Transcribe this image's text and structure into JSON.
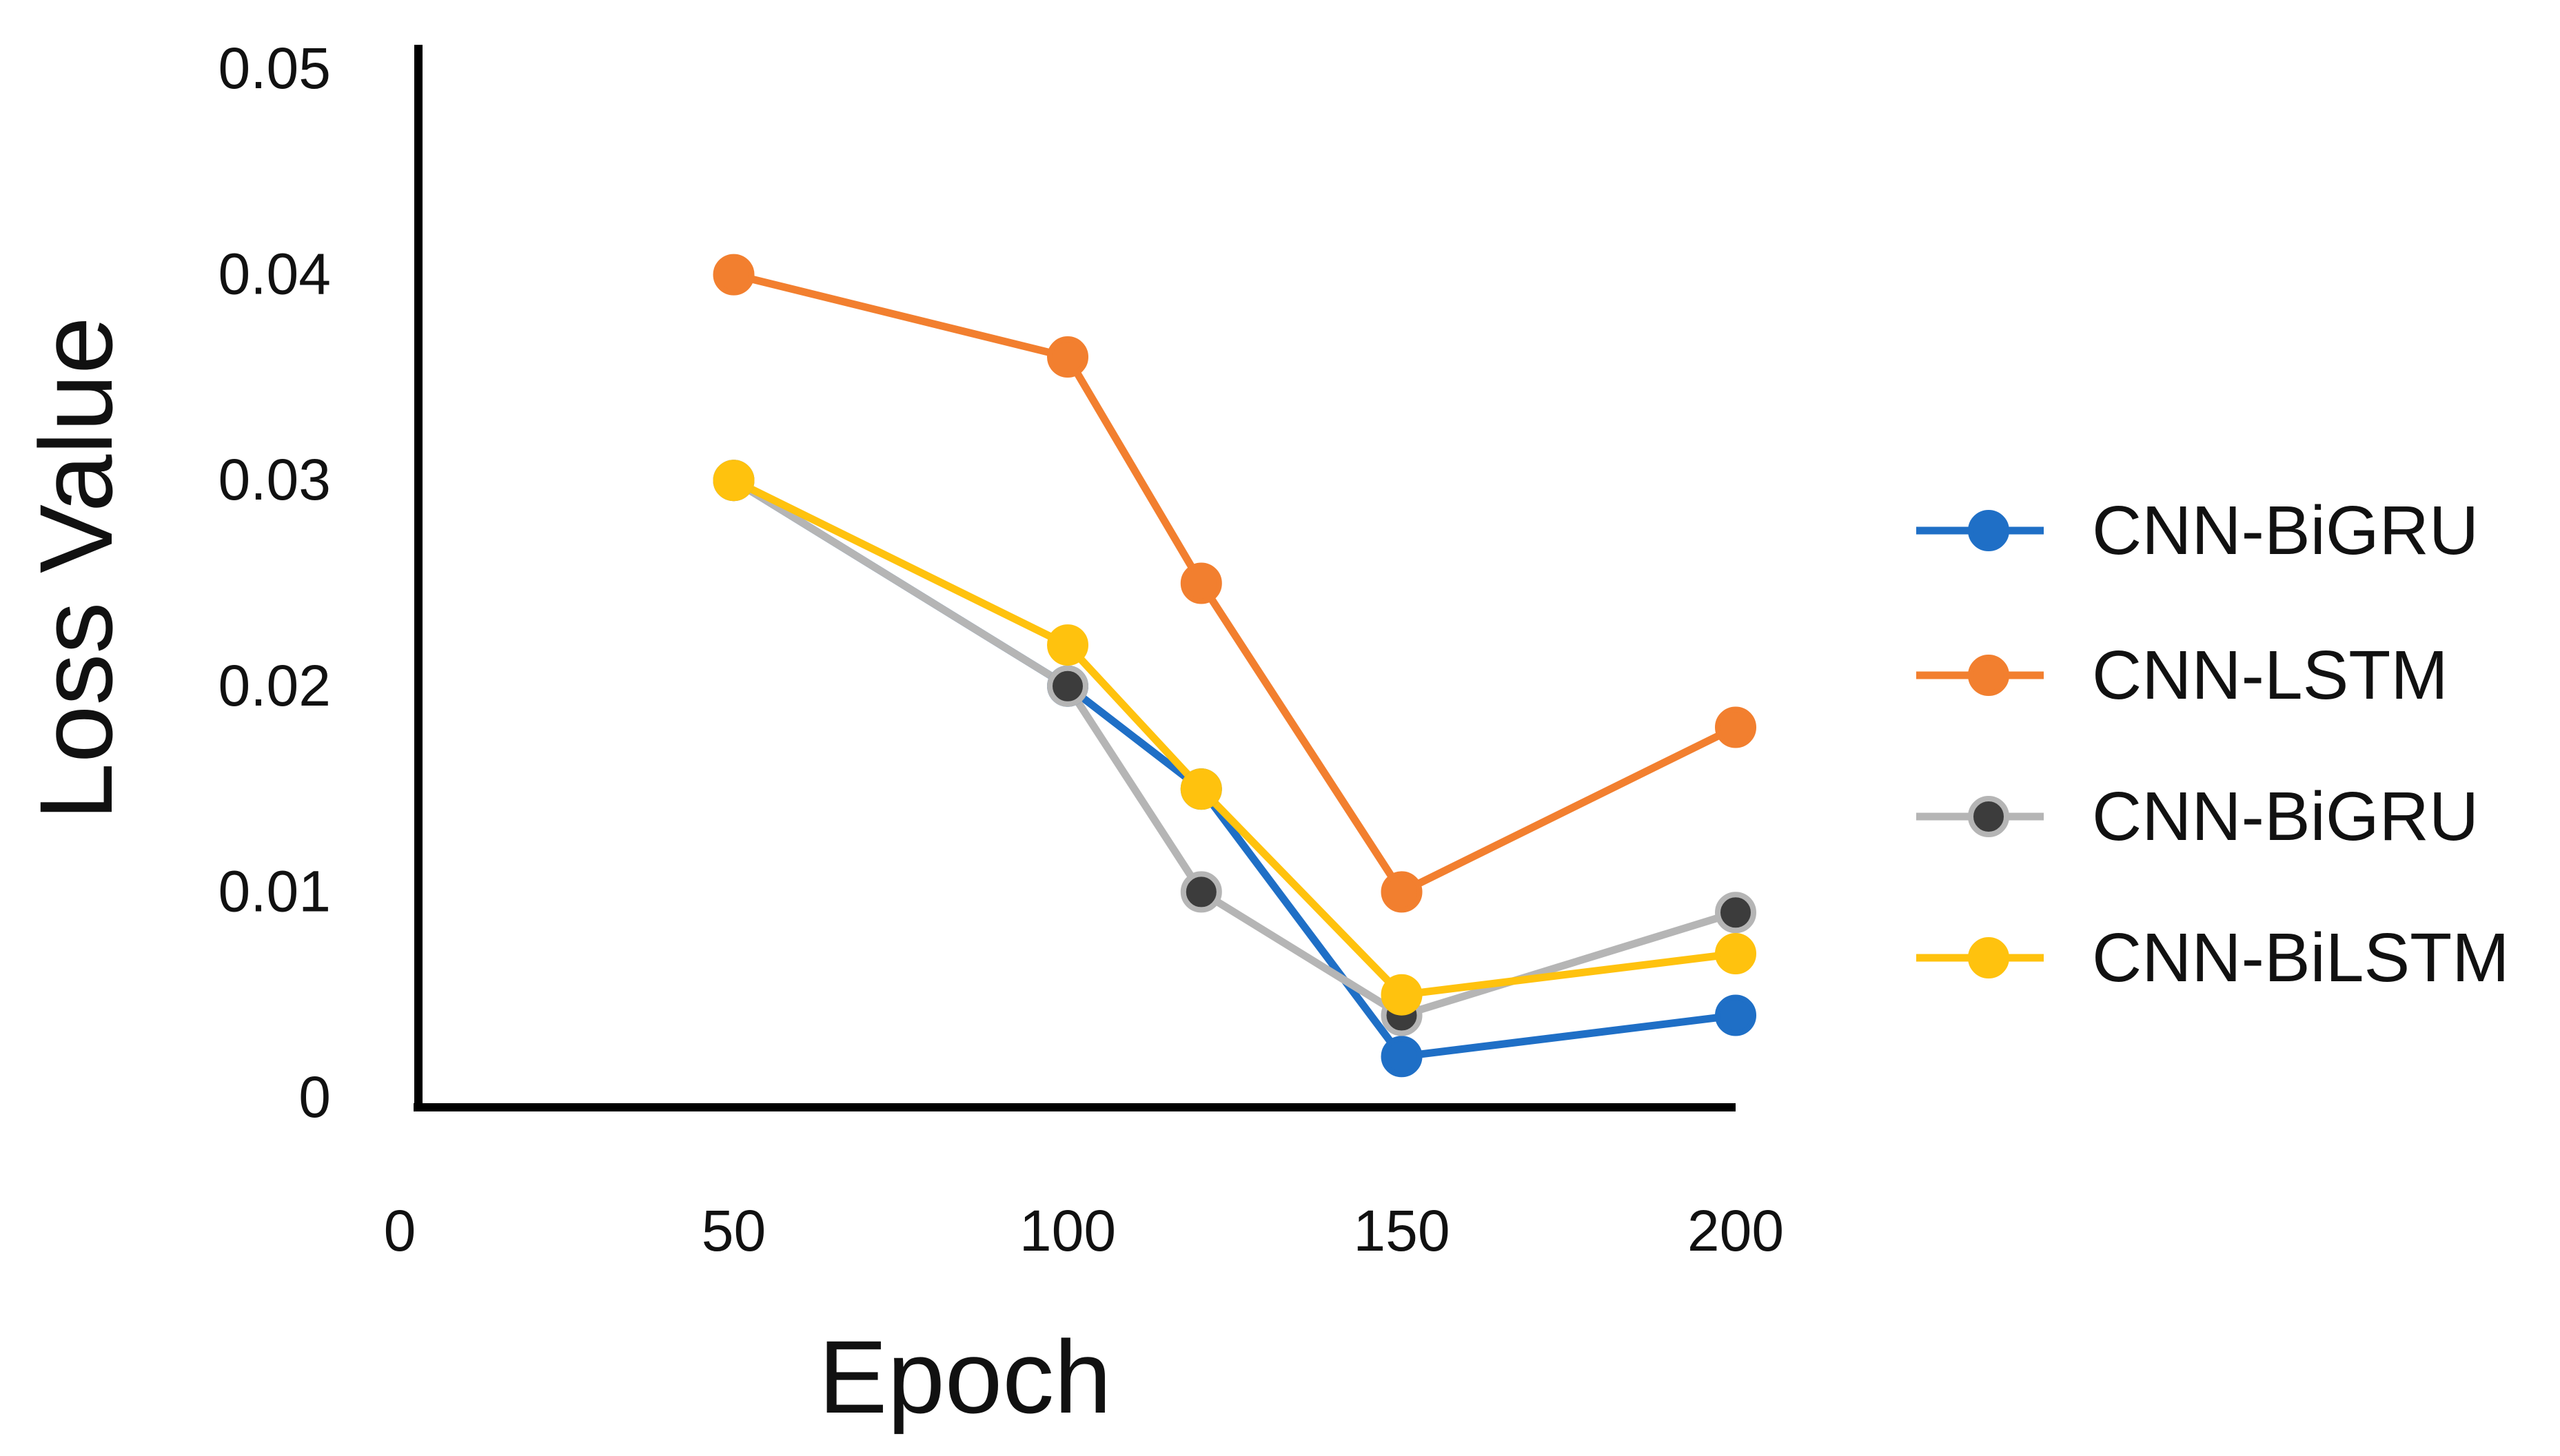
{
  "chart_data": {
    "type": "line",
    "title": "",
    "xlabel": "Epoch",
    "ylabel": "Loss Value",
    "xlim": [
      0,
      200
    ],
    "ylim": [
      0,
      0.05
    ],
    "x_ticks": [
      "0",
      "50",
      "100",
      "150",
      "200"
    ],
    "y_ticks": [
      "0",
      "0.01",
      "0.02",
      "0.03",
      "0.04",
      "0.05"
    ],
    "x_tick_values": [
      0,
      50,
      100,
      150,
      200
    ],
    "y_tick_values": [
      0,
      0.01,
      0.02,
      0.03,
      0.04,
      0.05
    ],
    "grid": false,
    "legend_position": "right",
    "series": [
      {
        "name": "CNN-BiGRU",
        "color": "#1f6fc6",
        "marker_fill": "#1f6fc6",
        "x": [
          50,
          100,
          120,
          150,
          200
        ],
        "y": [
          0.03,
          0.02,
          0.015,
          0.002,
          0.004
        ]
      },
      {
        "name": "CNN-LSTM",
        "color": "#f27f2f",
        "marker_fill": "#f27f2f",
        "x": [
          50,
          100,
          120,
          150,
          200
        ],
        "y": [
          0.04,
          0.036,
          0.025,
          0.01,
          0.018
        ]
      },
      {
        "name": "CNN-BiGRU",
        "color": "#b5b5b5",
        "marker_fill": "#3c3c3c",
        "x": [
          50,
          100,
          120,
          150,
          200
        ],
        "y": [
          0.03,
          0.02,
          0.01,
          0.004,
          0.009
        ]
      },
      {
        "name": "CNN-BiLSTM",
        "color": "#ffc20e",
        "marker_fill": "#ffc20e",
        "x": [
          50,
          100,
          120,
          150,
          200
        ],
        "y": [
          0.03,
          0.022,
          0.015,
          0.005,
          0.007
        ]
      }
    ]
  }
}
